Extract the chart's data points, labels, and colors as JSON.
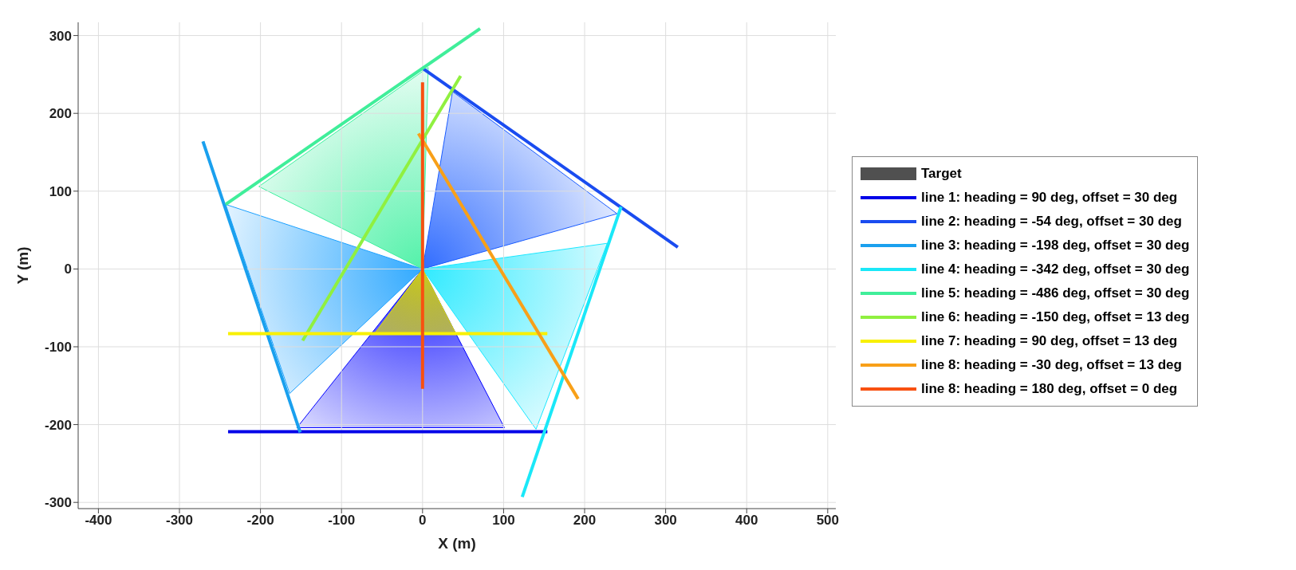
{
  "chart_data": {
    "type": "line",
    "xlabel": "X (m)",
    "ylabel": "Y (m)",
    "xlim": [
      -425,
      510
    ],
    "ylim": [
      -308,
      317
    ],
    "xticks": [
      -400,
      -300,
      -200,
      -100,
      0,
      100,
      200,
      300,
      400,
      500
    ],
    "yticks": [
      -300,
      -200,
      -100,
      0,
      100,
      200,
      300
    ],
    "grid": true,
    "legend": "right",
    "marker": "none",
    "line_style": "solid",
    "series": [
      {
        "type": "area",
        "color": "#0000ff",
        "x": [
          0,
          -155,
          101
        ],
        "values": [
          0,
          -204,
          -204
        ]
      },
      {
        "type": "area",
        "color": "#1a5cff",
        "x": [
          0,
          37,
          240
        ],
        "values": [
          0,
          228,
          71
        ]
      },
      {
        "type": "area",
        "color": "#1aa0ff",
        "x": [
          0,
          -243,
          -164
        ],
        "values": [
          0,
          83,
          -160
        ]
      },
      {
        "type": "area",
        "color": "#1ae8ff",
        "x": [
          0,
          228,
          140
        ],
        "values": [
          0,
          33,
          -206
        ]
      },
      {
        "type": "area",
        "color": "#40f0a0",
        "x": [
          0,
          -202,
          7
        ],
        "values": [
          0,
          106,
          259
        ]
      },
      {
        "type": "area",
        "color": "#e0e000",
        "x": [
          0,
          -59,
          41
        ],
        "values": [
          0,
          -83,
          -83
        ]
      },
      {
        "name": "Target",
        "type": "area",
        "color": "#505050"
      },
      {
        "name": "line 1: heading = 90 deg, offset = 30 deg",
        "color": "#0000e8",
        "x": [
          -240,
          154
        ],
        "values": [
          -209,
          -209
        ]
      },
      {
        "name": "line 2: heading = -54 deg, offset = 30 deg",
        "color": "#1a4cf0",
        "x": [
          0,
          315
        ],
        "values": [
          258,
          28
        ]
      },
      {
        "name": "line 3: heading = -198 deg, offset = 30 deg",
        "color": "#1aa0ee",
        "x": [
          -271,
          -151
        ],
        "values": [
          164,
          -210
        ]
      },
      {
        "name": "line 4: heading = -342 deg, offset = 30 deg",
        "color": "#1ae8f8",
        "x": [
          245,
          123
        ],
        "values": [
          80,
          -293
        ]
      },
      {
        "name": "line 5: heading = -486 deg, offset = 30 deg",
        "color": "#40ee9a",
        "x": [
          -243,
          71
        ],
        "values": [
          83,
          309
        ]
      },
      {
        "name": "line 6: heading = -150 deg, offset = 13 deg",
        "color": "#90f040",
        "x": [
          -148,
          47
        ],
        "values": [
          -92,
          248
        ]
      },
      {
        "name": "line 7: heading = 90 deg, offset = 13 deg",
        "color": "#f8f000",
        "x": [
          -240,
          154
        ],
        "values": [
          -83,
          -83
        ]
      },
      {
        "name": "line 8: heading = -30 deg, offset = 13 deg",
        "color": "#f8a018",
        "x": [
          -5,
          192
        ],
        "values": [
          174,
          -167
        ]
      },
      {
        "name": "line 8: heading = 180 deg, offset = 0 deg",
        "color": "#f85010",
        "x": [
          0,
          0
        ],
        "values": [
          240,
          -154
        ]
      }
    ]
  }
}
